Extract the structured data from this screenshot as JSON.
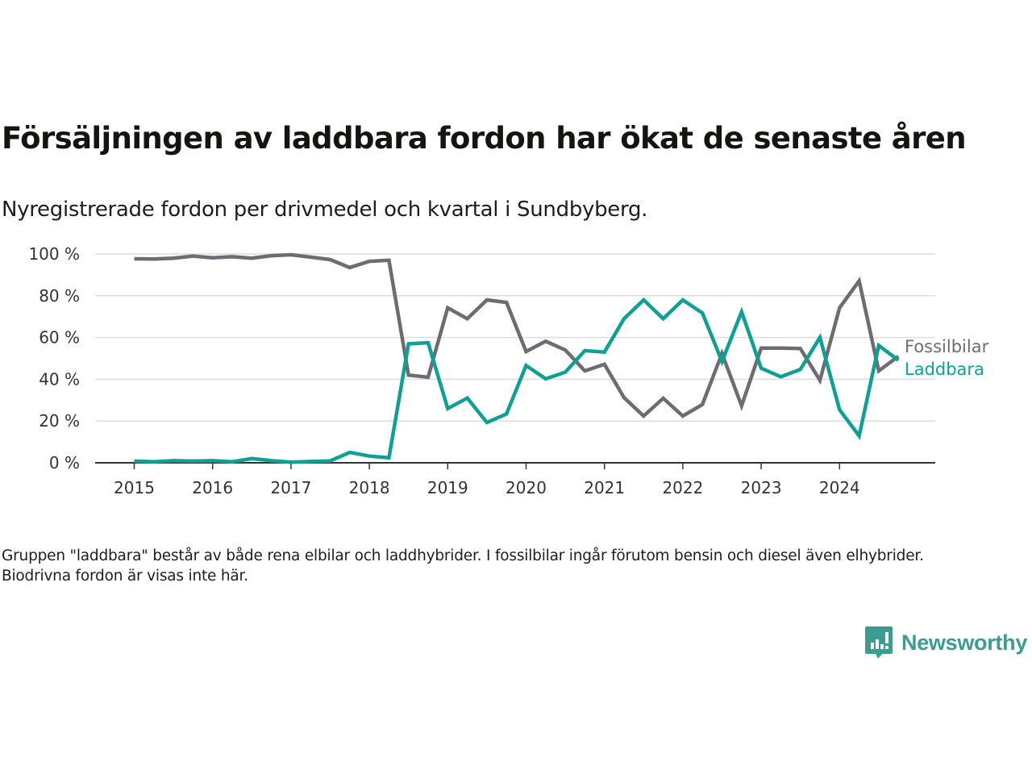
{
  "header": {
    "title": "Försäljningen av laddbara fordon har ökat de senaste åren",
    "subtitle": "Nyregistrerade fordon per drivmedel och kvartal i Sundbyberg."
  },
  "footnote": "Gruppen \"laddbara\" består av både rena elbilar och laddhybrider. I fossilbilar ingår förutom bensin och diesel även elhybrider. Biodrivna fordon är visas inte här.",
  "logo": {
    "icon": "newsworthy-chart-bubble-icon",
    "text": "Newsworthy",
    "color": "#3d9b8f"
  },
  "chart_data": {
    "type": "line",
    "title": "Försäljningen av laddbara fordon har ökat de senaste åren",
    "subtitle": "Nyregistrerade fordon per drivmedel och kvartal i Sundbyberg.",
    "xlabel": "",
    "ylabel": "",
    "x_start": "2015Q1",
    "x_step": "quarter",
    "x": [
      "2015Q1",
      "2015Q2",
      "2015Q3",
      "2015Q4",
      "2016Q1",
      "2016Q2",
      "2016Q3",
      "2016Q4",
      "2017Q1",
      "2017Q2",
      "2017Q3",
      "2017Q4",
      "2018Q1",
      "2018Q2",
      "2018Q3",
      "2018Q4",
      "2019Q1",
      "2019Q2",
      "2019Q3",
      "2019Q4",
      "2020Q1",
      "2020Q2",
      "2020Q3",
      "2020Q4",
      "2021Q1",
      "2021Q2",
      "2021Q3",
      "2021Q4",
      "2022Q1",
      "2022Q2",
      "2022Q3",
      "2022Q4",
      "2023Q1",
      "2023Q2",
      "2023Q3",
      "2023Q4",
      "2024Q1",
      "2024Q2",
      "2024Q3",
      "2024Q4"
    ],
    "x_ticks": [
      "2015",
      "2016",
      "2017",
      "2018",
      "2019",
      "2020",
      "2021",
      "2022",
      "2023",
      "2024"
    ],
    "y_ticks": [
      0,
      20,
      40,
      60,
      80,
      100
    ],
    "y_tick_labels": [
      "0 %",
      "20 %",
      "40 %",
      "60 %",
      "80 %",
      "100 %"
    ],
    "ylim": [
      0,
      100
    ],
    "grid": "horizontal",
    "legend": "right-end-labels",
    "series": [
      {
        "name": "Fossilbilar",
        "color": "#6d6c72",
        "values": [
          97.7,
          97.6,
          98.0,
          99.0,
          98.2,
          98.7,
          98.0,
          99.2,
          99.6,
          98.5,
          97.3,
          93.5,
          96.5,
          97.0,
          42.0,
          41.0,
          74.2,
          69.0,
          78.0,
          76.8,
          53.3,
          58.2,
          54.0,
          44.0,
          47.2,
          31.2,
          22.4,
          30.9,
          22.4,
          27.9,
          52.4,
          27.3,
          54.9,
          54.9,
          54.7,
          39.5,
          74.2,
          87.1,
          44.0,
          51.0
        ]
      },
      {
        "name": "Laddbara",
        "color": "#0ea193",
        "values": [
          0.8,
          0.5,
          1.0,
          0.8,
          1.0,
          0.5,
          2.0,
          1.0,
          0.3,
          0.6,
          0.9,
          5.0,
          3.2,
          2.4,
          57.0,
          57.5,
          26.0,
          31.0,
          19.3,
          23.4,
          46.6,
          40.2,
          43.4,
          53.7,
          53.0,
          69.0,
          78.0,
          69.0,
          78.0,
          71.7,
          48.5,
          72.3,
          45.3,
          41.2,
          44.7,
          60.0,
          25.4,
          12.9,
          56.2,
          49.1
        ]
      }
    ]
  }
}
